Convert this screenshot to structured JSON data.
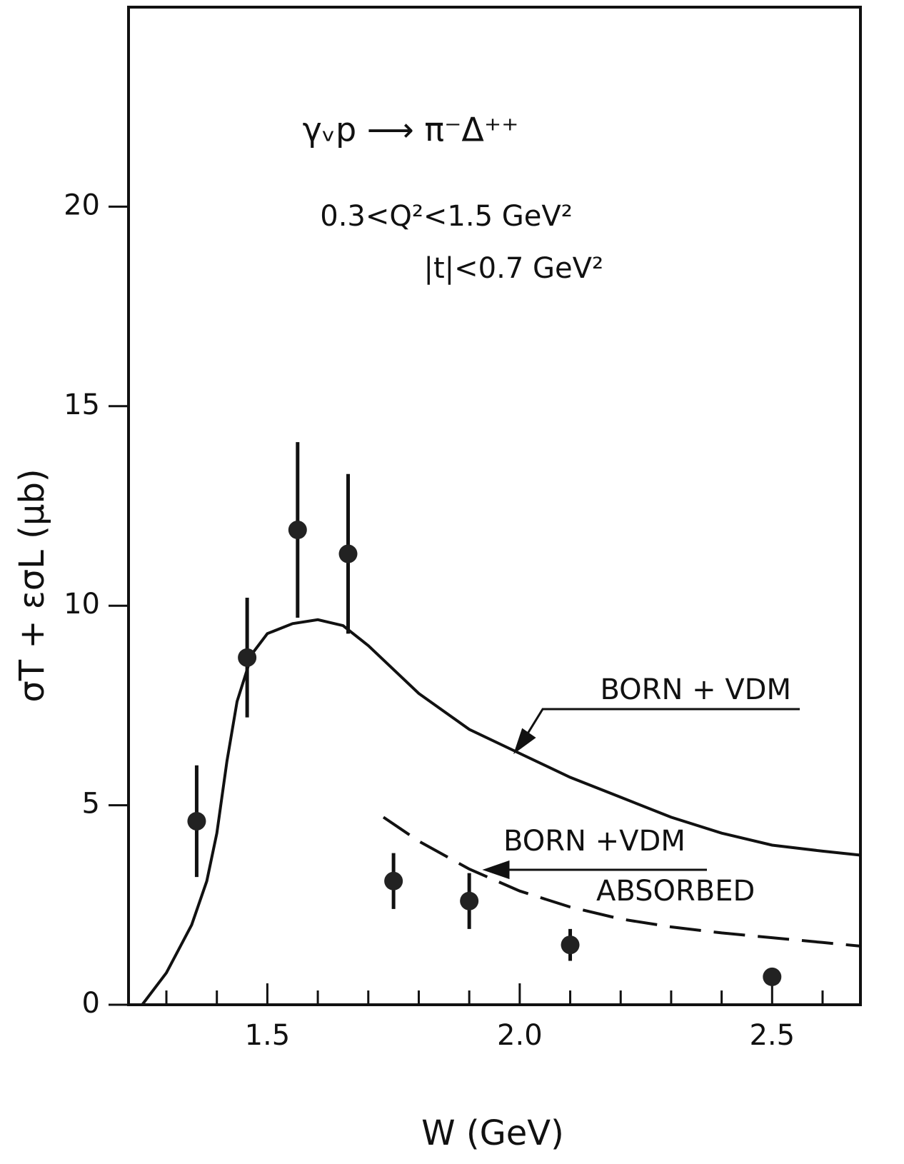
{
  "chart_data": {
    "type": "scatter",
    "title": "γᵥp ⟶ π⁻Δ⁺⁺",
    "annotations": [
      "0.3<Q²<1.5 GeV²",
      "|t|<0.7 GeV²"
    ],
    "x_label": "W (GeV)",
    "y_label": "σT + εσL (μb)",
    "xlim": [
      1.225,
      2.675
    ],
    "ylim": [
      0,
      25
    ],
    "xticks": [
      1.5,
      {
        "value": 2,
        "label": "2.0"
      },
      2.5
    ],
    "xminor_ticks": [
      1.3,
      1.4,
      1.6,
      1.7,
      1.8,
      1.9,
      2.1,
      2.2,
      2.3,
      2.4,
      2.6
    ],
    "yticks": [
      0,
      5,
      10,
      15,
      20
    ],
    "points": {
      "x": [
        1.36,
        1.46,
        1.56,
        1.66,
        1.75,
        1.9,
        2.1,
        2.5
      ],
      "values": [
        4.6,
        8.7,
        11.9,
        11.3,
        3.1,
        2.6,
        1.5,
        0.7
      ],
      "errors": [
        1.4,
        1.5,
        2.2,
        2.0,
        0.7,
        0.7,
        0.4,
        null
      ]
    },
    "curves": [
      {
        "label": [
          "BORN + VDM"
        ],
        "dashed": false,
        "x": [
          1.252,
          1.3,
          1.35,
          1.38,
          1.4,
          1.42,
          1.44,
          1.47,
          1.5,
          1.55,
          1.6,
          1.65,
          1.7,
          1.8,
          1.9,
          2.0,
          2.1,
          2.2,
          2.3,
          2.4,
          2.5,
          2.6,
          2.675
        ],
        "values": [
          0,
          0.8,
          2.0,
          3.1,
          4.3,
          6.1,
          7.6,
          8.8,
          9.3,
          9.55,
          9.65,
          9.5,
          9.0,
          7.8,
          6.9,
          6.3,
          5.7,
          5.2,
          4.7,
          4.3,
          4.0,
          3.85,
          3.75
        ]
      },
      {
        "label": [
          "BORN +VDM",
          "ABSORBED"
        ],
        "dashed": true,
        "x": [
          1.73,
          1.8,
          1.9,
          2.0,
          2.1,
          2.2,
          2.3,
          2.4,
          2.5,
          2.6,
          2.675
        ],
        "values": [
          4.7,
          4.1,
          3.4,
          2.85,
          2.45,
          2.15,
          1.95,
          1.8,
          1.68,
          1.56,
          1.47
        ]
      }
    ]
  }
}
